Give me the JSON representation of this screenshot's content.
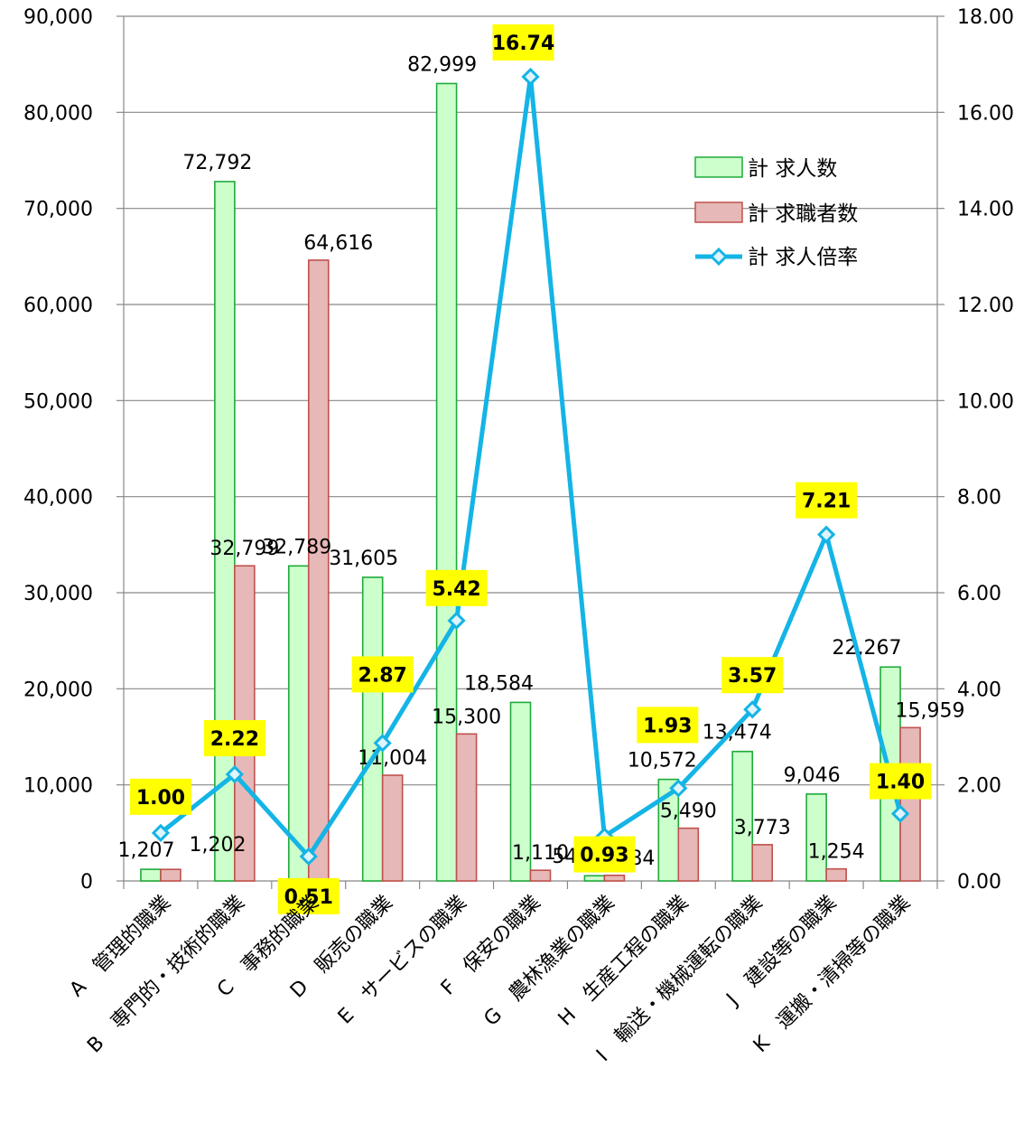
{
  "chart_data": {
    "type": "bar",
    "categories": [
      "A　管理的職業",
      "B　専門的・技術的職業",
      "C　事務的職業",
      "D　販売の職業",
      "E　サービスの職業",
      "F　保安の職業",
      "G　農林漁業の職業",
      "H　生産工程の職業",
      "I　輸送・機械運転の職業",
      "J　建設等の職業",
      "K　運搬・清掃等の職業"
    ],
    "series": [
      {
        "name": "計 求人数",
        "type": "bar",
        "axis": "left",
        "color": "#ccffcc",
        "edge": "#1faa3a",
        "values": [
          1207,
          72792,
          32789,
          31605,
          82999,
          18584,
          541,
          10572,
          13474,
          9046,
          22267
        ],
        "labels": [
          "1,207",
          "72,792",
          "32,789",
          "31,605",
          "82,999",
          "18,584",
          "541",
          "10,572",
          "13,474",
          "9,046",
          "22,267"
        ]
      },
      {
        "name": "計 求職者数",
        "type": "bar",
        "axis": "left",
        "color": "#e6b8b7",
        "edge": "#c0504d",
        "values": [
          1202,
          32799,
          64616,
          11004,
          15300,
          1110,
          584,
          5490,
          3773,
          1254,
          15959
        ],
        "labels": [
          "1,202",
          "32,799",
          "64,616",
          "11,004",
          "15,300",
          "1,110",
          "584",
          "5,490",
          "3,773",
          "1,254",
          "15,959"
        ]
      },
      {
        "name": "計 求人倍率",
        "type": "line",
        "axis": "right",
        "color": "#14b4e6",
        "values": [
          1.0,
          2.22,
          0.51,
          2.87,
          5.42,
          16.74,
          0.93,
          1.93,
          3.57,
          7.21,
          1.4
        ],
        "labels": [
          "1.00",
          "2.22",
          "0.51",
          "2.87",
          "5.42",
          "16.74",
          "0.93",
          "1.93",
          "3.57",
          "7.21",
          "1.40"
        ]
      }
    ],
    "y_left": {
      "min": 0,
      "max": 90000,
      "step": 10000,
      "ticks": [
        "0",
        "10,000",
        "20,000",
        "30,000",
        "40,000",
        "50,000",
        "60,000",
        "70,000",
        "80,000",
        "90,000"
      ]
    },
    "y_right": {
      "min": 0,
      "max": 18,
      "step": 2,
      "ticks": [
        "0.00",
        "2.00",
        "4.00",
        "6.00",
        "8.00",
        "10.00",
        "12.00",
        "14.00",
        "16.00",
        "18.00"
      ]
    },
    "ratio_label_color": "#ffff00",
    "grid": true,
    "legend_position": "top-right"
  }
}
